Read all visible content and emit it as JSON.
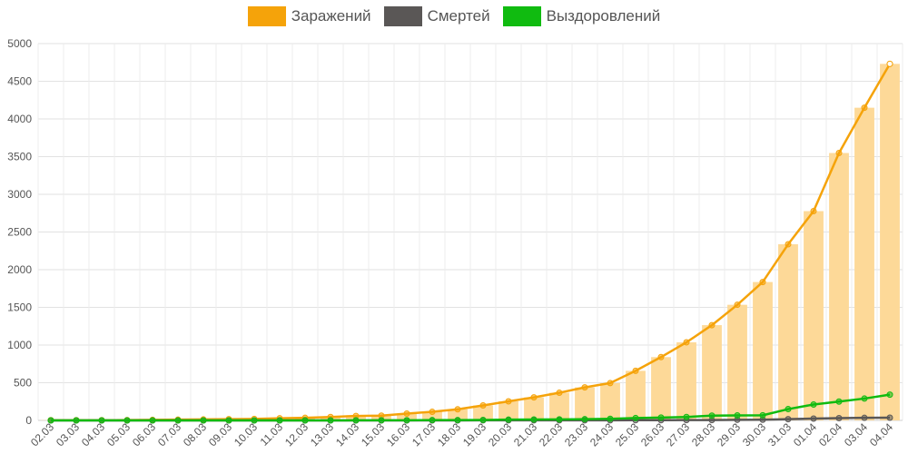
{
  "chart_data": {
    "type": "bar",
    "categories": [
      "02.03",
      "03.03",
      "04.03",
      "05.03",
      "06.03",
      "07.03",
      "08.03",
      "09.03",
      "10.03",
      "11.03",
      "12.03",
      "13.03",
      "14.03",
      "15.03",
      "16.03",
      "17.03",
      "18.03",
      "19.03",
      "20.03",
      "21.03",
      "22.03",
      "23.03",
      "24.03",
      "25.03",
      "26.03",
      "27.03",
      "28.03",
      "29.03",
      "30.03",
      "31.03",
      "01.04",
      "02.04",
      "03.04",
      "04.04"
    ],
    "ylim": [
      0,
      5000
    ],
    "yticks": [
      0,
      500,
      1000,
      1500,
      2000,
      2500,
      3000,
      3500,
      4000,
      4500,
      5000
    ],
    "grid": true,
    "legend_position": "top-center",
    "series": [
      {
        "name": "Заражений",
        "color": "#f5a30a",
        "bar_color": "#fdd998",
        "values": [
          3,
          3,
          3,
          4,
          7,
          10,
          13,
          17,
          20,
          28,
          34,
          45,
          59,
          63,
          90,
          114,
          147,
          199,
          253,
          306,
          367,
          438,
          495,
          658,
          840,
          1036,
          1264,
          1534,
          1836,
          2337,
          2777,
          3548,
          4149,
          4731
        ]
      },
      {
        "name": "Смертей",
        "color": "#5a5756",
        "values": [
          0,
          0,
          0,
          0,
          0,
          0,
          0,
          0,
          0,
          0,
          0,
          0,
          0,
          0,
          0,
          0,
          0,
          1,
          1,
          1,
          1,
          1,
          1,
          3,
          3,
          4,
          4,
          8,
          9,
          17,
          24,
          30,
          34,
          36
        ]
      },
      {
        "name": "Выздоровлений",
        "color": "#10bb10",
        "values": [
          0,
          0,
          0,
          0,
          0,
          0,
          0,
          0,
          0,
          0,
          0,
          0,
          1,
          1,
          2,
          4,
          4,
          6,
          10,
          12,
          14,
          16,
          21,
          31,
          38,
          45,
          64,
          66,
          68,
          150,
          211,
          250,
          290,
          342
        ]
      }
    ]
  }
}
